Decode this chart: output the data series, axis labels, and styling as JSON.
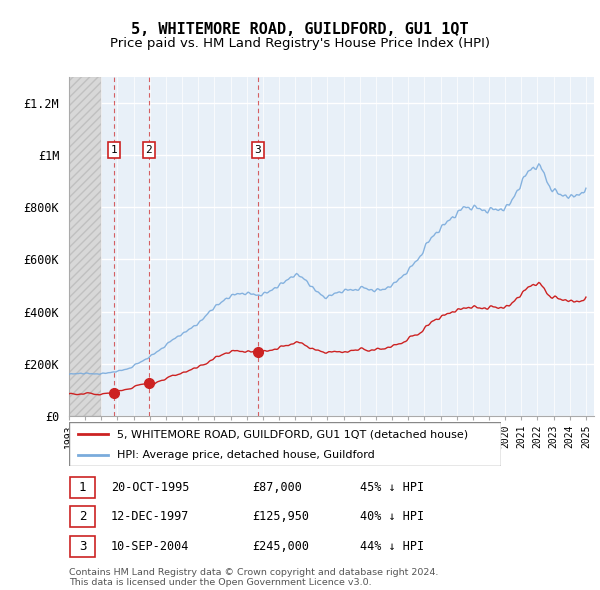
{
  "title": "5, WHITEMORE ROAD, GUILDFORD, GU1 1QT",
  "subtitle": "Price paid vs. HM Land Registry's House Price Index (HPI)",
  "title_fontsize": 11,
  "subtitle_fontsize": 9.5,
  "hpi_color": "#7aabdc",
  "property_color": "#cc2222",
  "legend1": "5, WHITEMORE ROAD, GUILDFORD, GU1 1QT (detached house)",
  "legend2": "HPI: Average price, detached house, Guildford",
  "transactions": [
    {
      "label": "1",
      "date": "20-OCT-1995",
      "price": 87000,
      "hpi_pct": "45% ↓ HPI",
      "x_year": 1995.8
    },
    {
      "label": "2",
      "date": "12-DEC-1997",
      "price": 125950,
      "hpi_pct": "40% ↓ HPI",
      "x_year": 1997.95
    },
    {
      "label": "3",
      "date": "10-SEP-2004",
      "price": 245000,
      "hpi_pct": "44% ↓ HPI",
      "x_year": 2004.7
    }
  ],
  "footer": "Contains HM Land Registry data © Crown copyright and database right 2024.\nThis data is licensed under the Open Government Licence v3.0.",
  "ylim": [
    0,
    1300000
  ],
  "xlim_start": 1993,
  "xlim_end": 2025.5,
  "yticks": [
    0,
    200000,
    400000,
    600000,
    800000,
    1000000,
    1200000
  ],
  "ytick_labels": [
    "£0",
    "£200K",
    "£400K",
    "£600K",
    "£800K",
    "£1M",
    "£1.2M"
  ],
  "xticks": [
    1993,
    1994,
    1995,
    1996,
    1997,
    1998,
    1999,
    2000,
    2001,
    2002,
    2003,
    2004,
    2005,
    2006,
    2007,
    2008,
    2009,
    2010,
    2011,
    2012,
    2013,
    2014,
    2015,
    2016,
    2017,
    2018,
    2019,
    2020,
    2021,
    2022,
    2023,
    2024,
    2025
  ]
}
